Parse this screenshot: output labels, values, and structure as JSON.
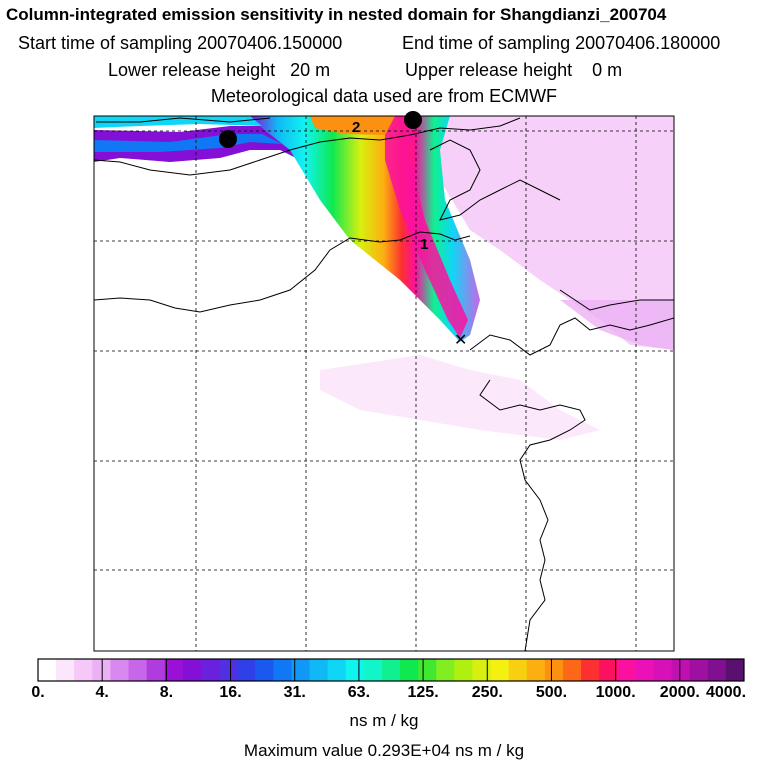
{
  "header": {
    "title": "Column-integrated emission sensitivity in nested domain for Shangdianzi_200704",
    "start_label": "Start time of sampling 20070406.150000",
    "end_label": "End time of sampling 20070406.180000",
    "lower_label": "Lower release height   20 m",
    "upper_label": "Upper release height    0 m",
    "met_label": "Meteorological data used are from ECMWF"
  },
  "map": {
    "markers": [
      {
        "name": "marker-2",
        "label": "2"
      },
      {
        "name": "marker-1",
        "label": "1"
      }
    ],
    "receptor_symbol": "✕"
  },
  "colorbar": {
    "tick_labels": [
      "0.",
      "4.",
      "8.",
      "16.",
      "31.",
      "63.",
      "125.",
      "250.",
      "500.",
      "1000.",
      "2000.",
      "4000."
    ],
    "colors": [
      "#ffffff",
      "#fbe6fb",
      "#f5c8f7",
      "#ecb0f4",
      "#d888ee",
      "#c766e8",
      "#b13cde",
      "#9a10d6",
      "#8410d8",
      "#6a20dc",
      "#5030e0",
      "#3040e8",
      "#1a58f0",
      "#1078f4",
      "#1098f6",
      "#10b8f6",
      "#10d6f6",
      "#10f4f0",
      "#10f6c8",
      "#10f090",
      "#10e850",
      "#40e830",
      "#80ee20",
      "#b0f010",
      "#d8f010",
      "#f4f010",
      "#f8d010",
      "#fcb010",
      "#fc9010",
      "#fc6818",
      "#fc3030",
      "#fc1060",
      "#fc10a0",
      "#ec10b8",
      "#d810b8",
      "#c010b0",
      "#a010a0",
      "#801090",
      "#5a1070"
    ],
    "unit": "ns m / kg"
  },
  "footer": {
    "max_value": "Maximum value  0.293E+04 ns m / kg"
  }
}
